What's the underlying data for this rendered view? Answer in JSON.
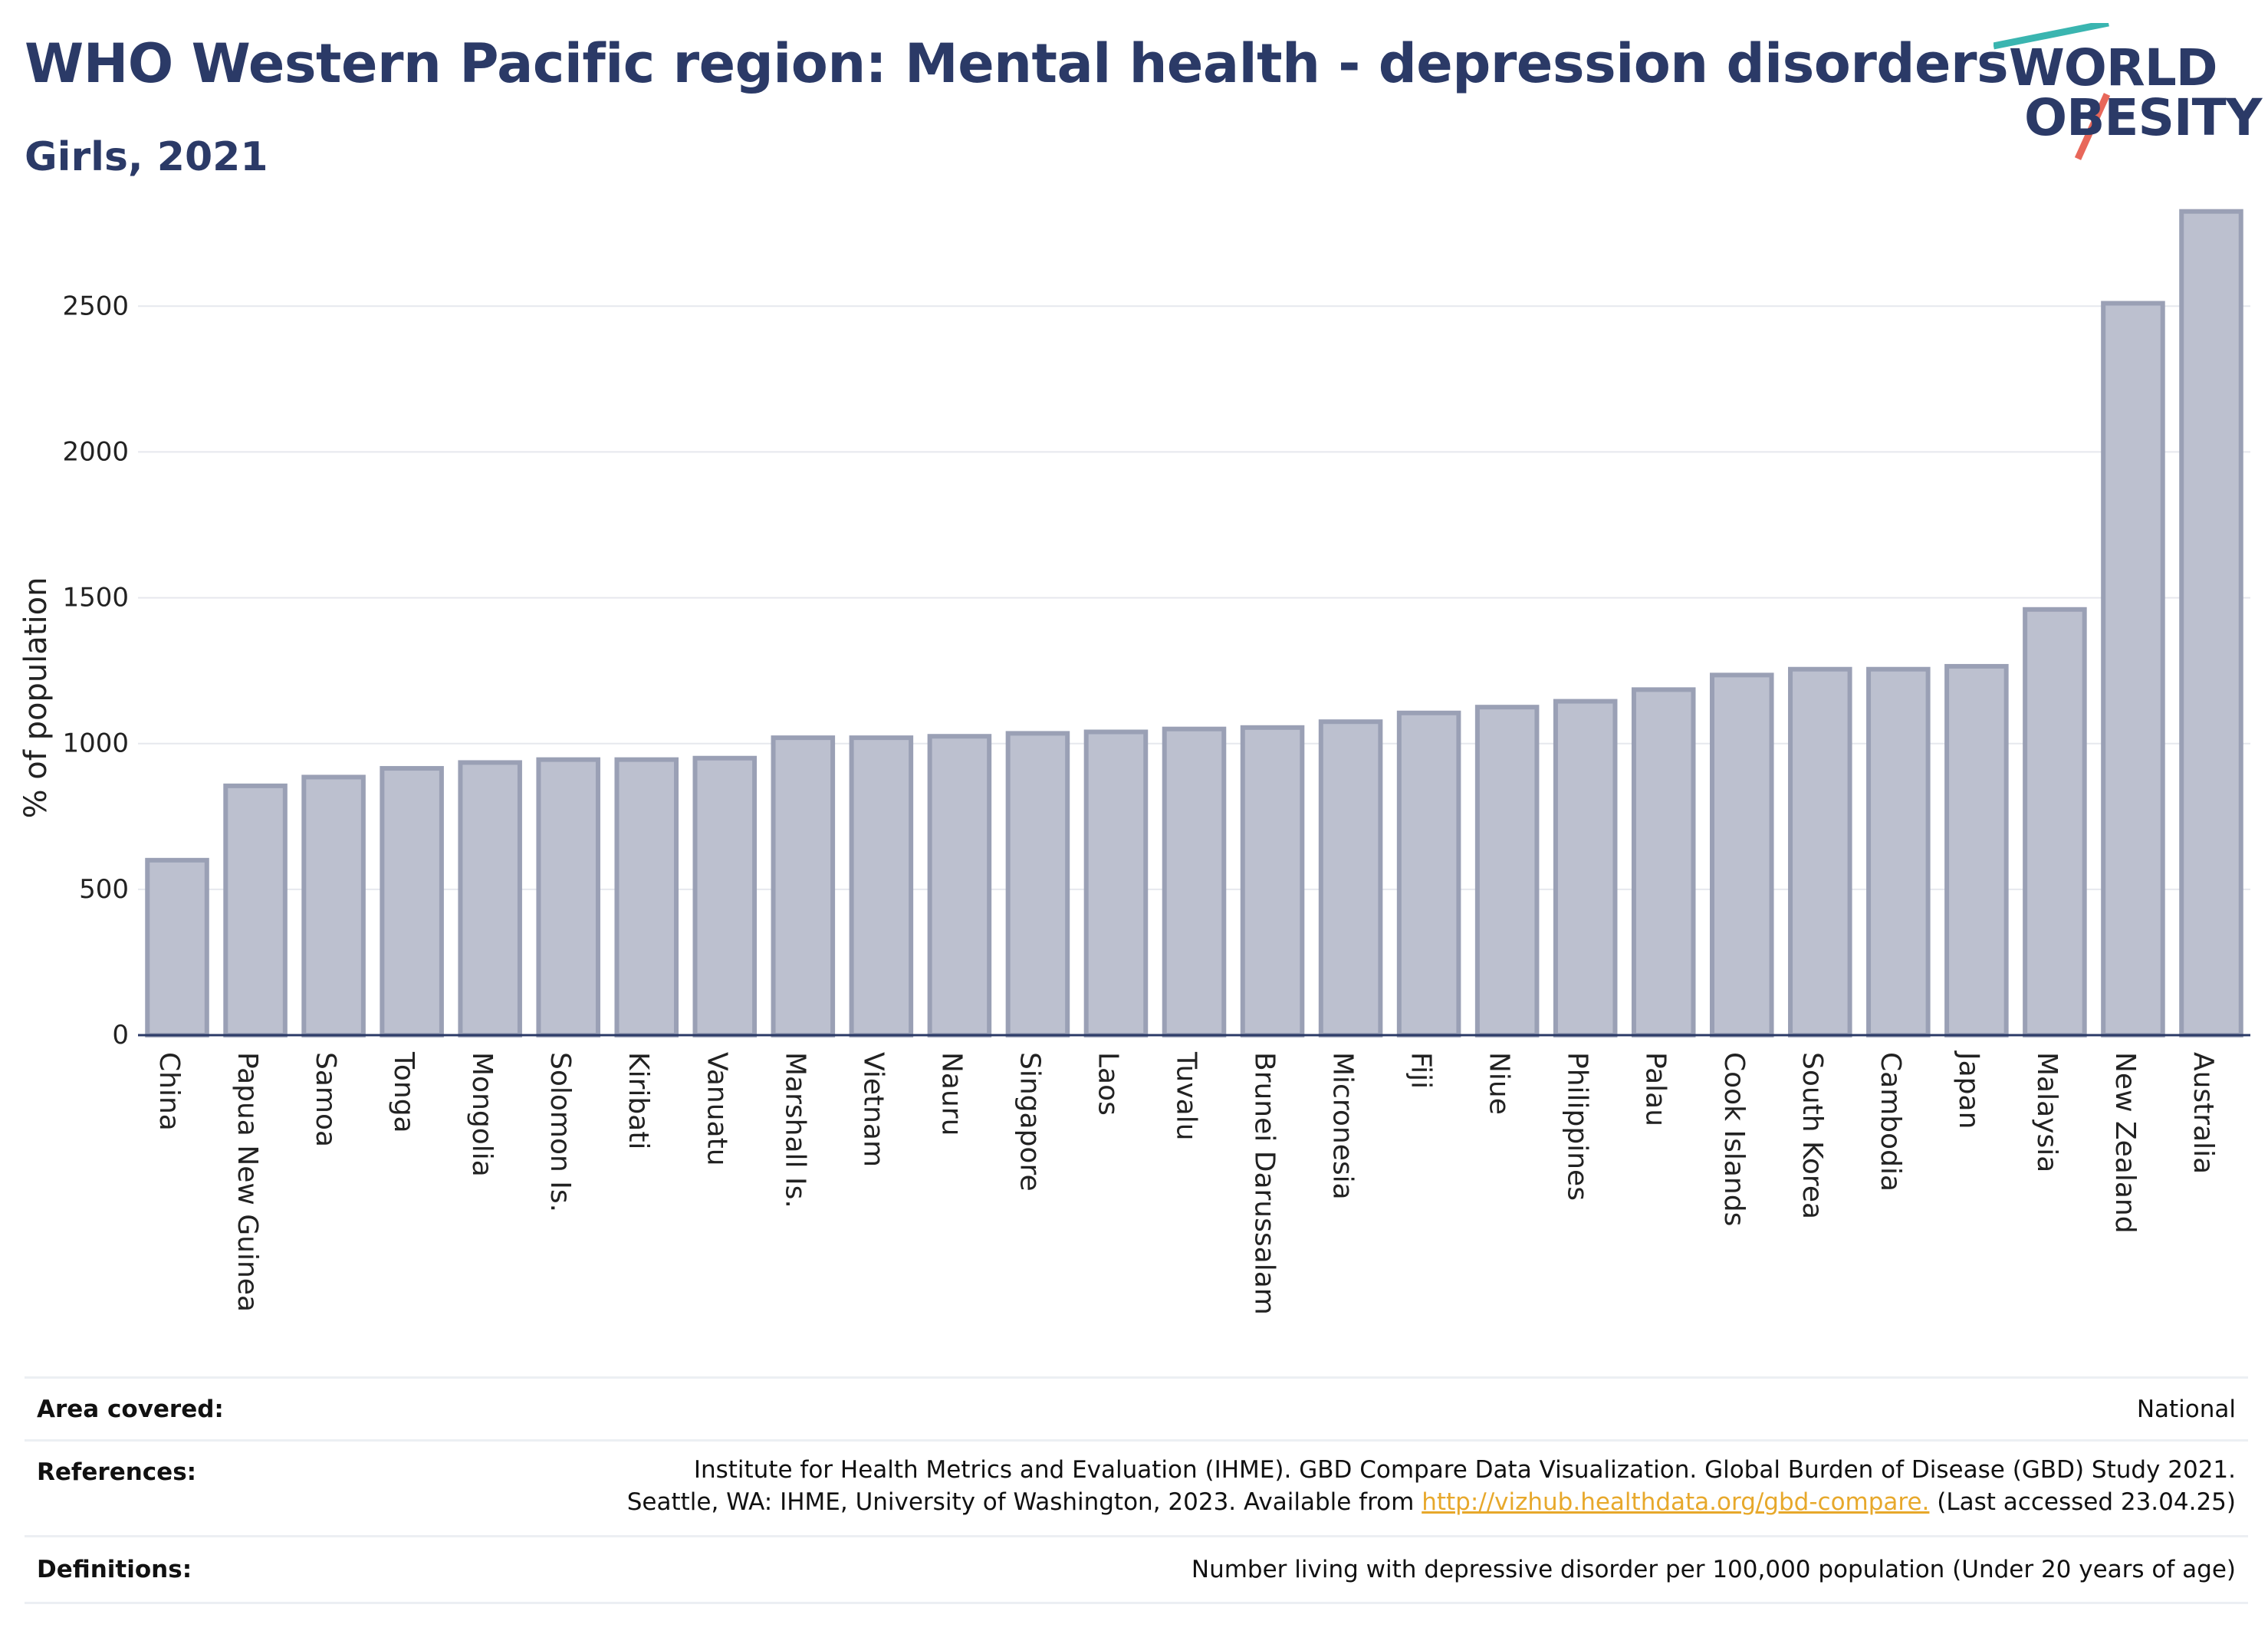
{
  "header": {
    "title": "WHO Western Pacific region: Mental health - depression disorders",
    "subtitle": "Girls, 2021"
  },
  "logo": {
    "line1": "WORLD",
    "line2": "OBESITY",
    "accent_colors": [
      "#3ab5b0",
      "#e8675a"
    ]
  },
  "chart_data": {
    "type": "bar",
    "categories": [
      "China",
      "Papua New Guinea",
      "Samoa",
      "Tonga",
      "Mongolia",
      "Solomon Is.",
      "Kiribati",
      "Vanuatu",
      "Marshall Is.",
      "Vietnam",
      "Nauru",
      "Singapore",
      "Laos",
      "Tuvalu",
      "Brunei Darussalam",
      "Micronesia",
      "Fiji",
      "Niue",
      "Philippines",
      "Palau",
      "Cook Islands",
      "South Korea",
      "Cambodia",
      "Japan",
      "Malaysia",
      "New Zealand",
      "Australia"
    ],
    "values": [
      600,
      855,
      885,
      915,
      935,
      945,
      945,
      950,
      1020,
      1020,
      1025,
      1035,
      1040,
      1050,
      1055,
      1075,
      1105,
      1125,
      1145,
      1185,
      1235,
      1255,
      1255,
      1265,
      1460,
      2510,
      2825
    ],
    "ylabel": "% of population",
    "xlabel": "",
    "ylim": [
      0,
      2840
    ],
    "yticks": [
      0,
      500,
      1000,
      1500,
      2000,
      2500
    ],
    "grid": true,
    "colors": {
      "bar_fill": "#bcc0cf",
      "bar_stroke": "#9aa0b5",
      "grid": "#e6e8ee",
      "axis": "#2b3a67"
    }
  },
  "footer": {
    "area": {
      "label": "Area covered:",
      "value": "National"
    },
    "references": {
      "label": "References:",
      "line1": "Institute for Health Metrics and Evaluation (IHME). GBD Compare Data Visualization. Global Burden of Disease (GBD) Study 2021.",
      "line2_pre": "Seattle, WA: IHME, University of Washington, 2023. Available from ",
      "link": "http://vizhub.healthdata.org/gbd-compare.",
      "line2_post": " (Last accessed 23.04.25)"
    },
    "definitions": {
      "label": "Definitions:",
      "value": "Number living with depressive disorder per 100,000 population (Under 20 years of age)"
    }
  }
}
